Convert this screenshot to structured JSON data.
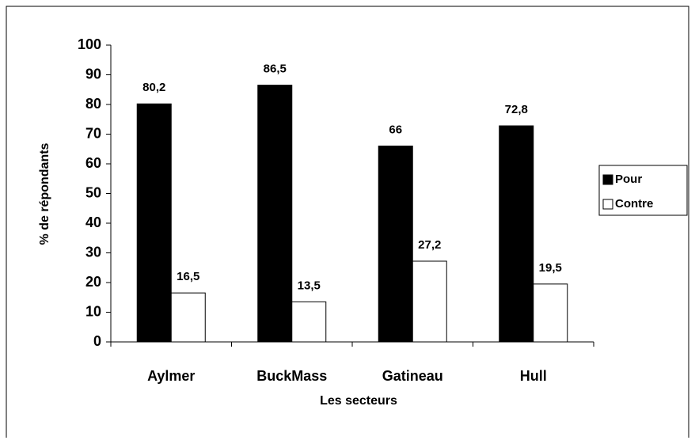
{
  "chart_data": {
    "type": "bar",
    "x_label": "Les secteurs",
    "y_label": "% de répondants",
    "categories": [
      "Aylmer",
      "BuckMass",
      "Gatineau",
      "Hull"
    ],
    "series": [
      {
        "name": "Pour",
        "color": "#000000",
        "values": [
          80.2,
          86.5,
          66,
          72.8
        ],
        "value_labels": [
          "80,2",
          "86,5",
          "66",
          "72,8"
        ]
      },
      {
        "name": "Contre",
        "color": "#ffffff",
        "values": [
          16.5,
          13.5,
          27.2,
          19.5
        ],
        "value_labels": [
          "16,5",
          "13,5",
          "27,2",
          "19,5"
        ]
      }
    ],
    "ylim": [
      0,
      100
    ],
    "yticks": [
      0,
      10,
      20,
      30,
      40,
      50,
      60,
      70,
      80,
      90,
      100
    ],
    "grid": false,
    "legend": "right"
  }
}
